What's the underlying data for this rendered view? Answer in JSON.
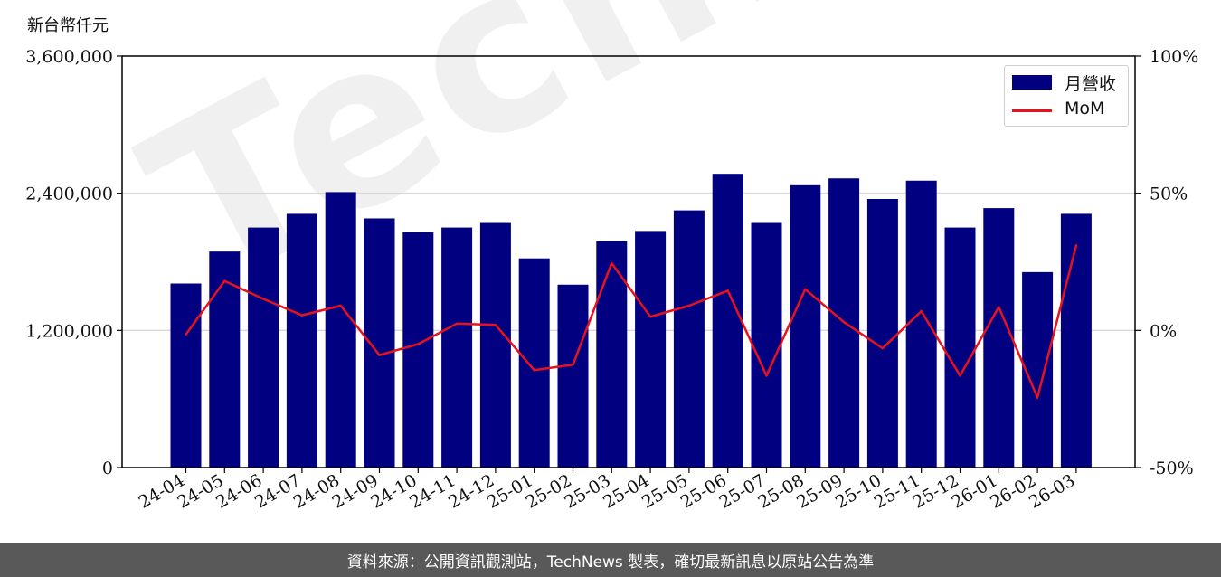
{
  "chart_data": {
    "type": "bar",
    "unit_label": "新台幣仟元",
    "categories": [
      "24-04",
      "24-05",
      "24-06",
      "24-07",
      "24-08",
      "24-09",
      "24-10",
      "24-11",
      "24-12",
      "25-01",
      "25-02",
      "25-03",
      "25-04",
      "25-05",
      "25-06",
      "25-07",
      "25-08",
      "25-09",
      "25-10",
      "25-11",
      "25-12",
      "26-01",
      "26-02",
      "26-03"
    ],
    "series": [
      {
        "name": "月營收",
        "type": "bar",
        "color": "#000080",
        "values": [
          1610000,
          1890000,
          2100000,
          2220000,
          2410000,
          2180000,
          2060000,
          2100000,
          2140000,
          1830000,
          1600000,
          1980000,
          2070000,
          2250000,
          2570000,
          2140000,
          2470000,
          2530000,
          2350000,
          2510000,
          2100000,
          2270000,
          1710000,
          2220000
        ]
      },
      {
        "name": "MoM",
        "type": "line",
        "axis": "right",
        "color": "#e8121c",
        "values": [
          -1.5,
          18.0,
          11.5,
          5.5,
          9.0,
          -9.0,
          -5.0,
          2.5,
          2.0,
          -14.5,
          -12.5,
          24.5,
          5.0,
          9.0,
          14.5,
          -16.5,
          15.0,
          3.0,
          -6.5,
          7.0,
          -16.5,
          8.5,
          -24.5,
          31.0
        ]
      }
    ],
    "left_axis": {
      "ylim": [
        0,
        3600000
      ],
      "ticks": [
        0,
        1200000,
        2400000,
        3600000
      ],
      "tick_labels": [
        "0",
        "1,200,000",
        "2,400,000",
        "3,600,000"
      ]
    },
    "right_axis": {
      "ylim": [
        -50,
        100
      ],
      "ticks": [
        -50,
        0,
        50,
        100
      ],
      "tick_labels": [
        "-50%",
        "0%",
        "50%",
        "100%"
      ]
    },
    "grid": true,
    "legend_position": "top-right"
  },
  "watermark": "TechNews",
  "footer": "資料來源：公開資訊觀測站，TechNews 製表，確切最新訊息以原站公告為準"
}
